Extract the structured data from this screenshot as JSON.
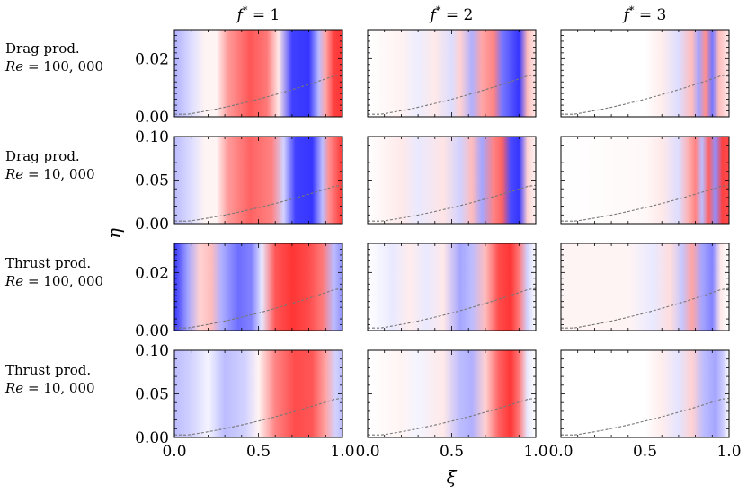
{
  "chart_data": {
    "type": "heatmap",
    "title": "",
    "xlabel": "ξ",
    "ylabel": "η",
    "columns": [
      {
        "label_base": "f",
        "label_sup": "*",
        "label_rest": " = 1",
        "f_star": 1
      },
      {
        "label_base": "f",
        "label_sup": "*",
        "label_rest": " = 2",
        "f_star": 2
      },
      {
        "label_base": "f",
        "label_sup": "*",
        "label_rest": " = 3",
        "f_star": 3
      }
    ],
    "rows": [
      {
        "name": "Drag prod.",
        "re_prefix": "Re",
        "re_value": " = 100, 000",
        "ylim": [
          0,
          0.03
        ],
        "yticks": [
          0,
          0.02
        ],
        "ytick_labels": [
          "0.00",
          "0.02"
        ],
        "boundary_top": 0.0145
      },
      {
        "name": "Drag prod.",
        "re_prefix": "Re",
        "re_value": " = 10, 000",
        "ylim": [
          0,
          0.1
        ],
        "yticks": [
          0,
          0.05,
          0.1
        ],
        "ytick_labels": [
          "0.00",
          "0.05",
          "0.10"
        ],
        "boundary_top": 0.044
      },
      {
        "name": "Thrust prod.",
        "re_prefix": "Re",
        "re_value": " = 100, 000",
        "ylim": [
          0,
          0.03
        ],
        "yticks": [
          0,
          0.02
        ],
        "ytick_labels": [
          "0.00",
          "0.02"
        ],
        "boundary_top": 0.0145
      },
      {
        "name": "Thrust prod.",
        "re_prefix": "Re",
        "re_value": " = 10, 000",
        "ylim": [
          0,
          0.1
        ],
        "yticks": [
          0,
          0.05,
          0.1
        ],
        "ytick_labels": [
          "0.00",
          "0.05",
          "0.10"
        ],
        "boundary_top": 0.045
      }
    ],
    "xlim": [
      0.0,
      1.0
    ],
    "xticks": [
      0.0,
      0.5,
      1.0
    ],
    "xtick_labels": [
      "0.0",
      "0.5",
      "1.0"
    ],
    "colormap": "bwr",
    "colors": {
      "negative": "#1e1eff",
      "neutral": "#ffffff",
      "positive": "#ff1e1e",
      "boundary_line": "#777777"
    },
    "annotation": "dashed line marks boundary-layer thickness"
  }
}
